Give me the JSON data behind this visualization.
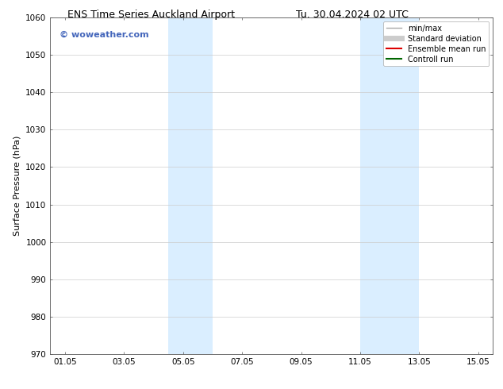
{
  "title_left": "ENS Time Series Auckland Airport",
  "title_right": "Tu. 30.04.2024 02 UTC",
  "ylabel": "Surface Pressure (hPa)",
  "ylim": [
    970,
    1060
  ],
  "yticks": [
    970,
    980,
    990,
    1000,
    1010,
    1020,
    1030,
    1040,
    1050,
    1060
  ],
  "xlim_start": 0.0,
  "xlim_end": 15.0,
  "xtick_positions": [
    0.5,
    2.5,
    4.5,
    6.5,
    8.5,
    10.5,
    12.5,
    14.5
  ],
  "xtick_labels": [
    "01.05",
    "03.05",
    "05.05",
    "07.05",
    "09.05",
    "11.05",
    "13.05",
    "15.05"
  ],
  "shade_regions": [
    {
      "start": 4.0,
      "end": 5.5
    },
    {
      "start": 10.5,
      "end": 12.5
    }
  ],
  "shade_color": "#daeeff",
  "watermark_text": "© woweather.com",
  "watermark_color": "#4466bb",
  "legend_entries": [
    {
      "label": "min/max",
      "color": "#aaaaaa",
      "lw": 1.0
    },
    {
      "label": "Standard deviation",
      "color": "#cccccc",
      "lw": 5
    },
    {
      "label": "Ensemble mean run",
      "color": "#dd0000",
      "lw": 1.5
    },
    {
      "label": "Controll run",
      "color": "#006600",
      "lw": 1.5
    }
  ],
  "bg_color": "#ffffff",
  "grid_color": "#cccccc",
  "title_fontsize": 9,
  "label_fontsize": 8,
  "tick_fontsize": 7.5,
  "watermark_fontsize": 8,
  "legend_fontsize": 7
}
